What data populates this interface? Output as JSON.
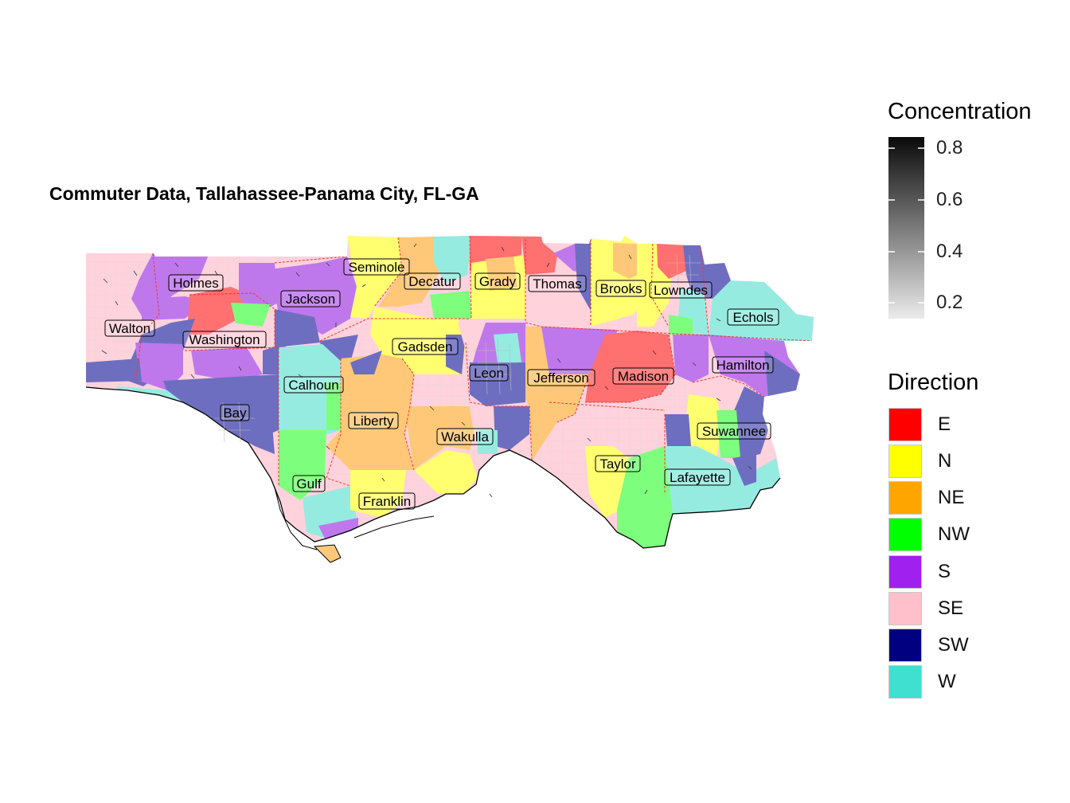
{
  "title": "Commuter Data, Tallahassee-Panama City, FL-GA",
  "concentration_legend": {
    "title": "Concentration",
    "ticks": [
      "0.8",
      "0.6",
      "0.4",
      "0.2"
    ],
    "gradient": {
      "low": "#ebebeb",
      "high": "#0a0a0a"
    }
  },
  "direction_legend": {
    "title": "Direction",
    "items": [
      {
        "label": "E",
        "color": "#ff0000"
      },
      {
        "label": "N",
        "color": "#ffff00"
      },
      {
        "label": "NE",
        "color": "#ffa500"
      },
      {
        "label": "NW",
        "color": "#00ff00"
      },
      {
        "label": "S",
        "color": "#a020f0"
      },
      {
        "label": "SE",
        "color": "#ffc0cb"
      },
      {
        "label": "SW",
        "color": "#000080"
      },
      {
        "label": "W",
        "color": "#40e0d0"
      }
    ]
  },
  "counties": [
    "Seminole",
    "Decatur",
    "Grady",
    "Thomas",
    "Brooks",
    "Lowndes",
    "Holmes",
    "Jackson",
    "Walton",
    "Washington",
    "Echols",
    "Gadsden",
    "Hamilton",
    "Leon",
    "Jefferson",
    "Madison",
    "Calhoun",
    "Bay",
    "Liberty",
    "Suwannee",
    "Wakulla",
    "Taylor",
    "Lafayette",
    "Gulf",
    "Franklin"
  ]
}
